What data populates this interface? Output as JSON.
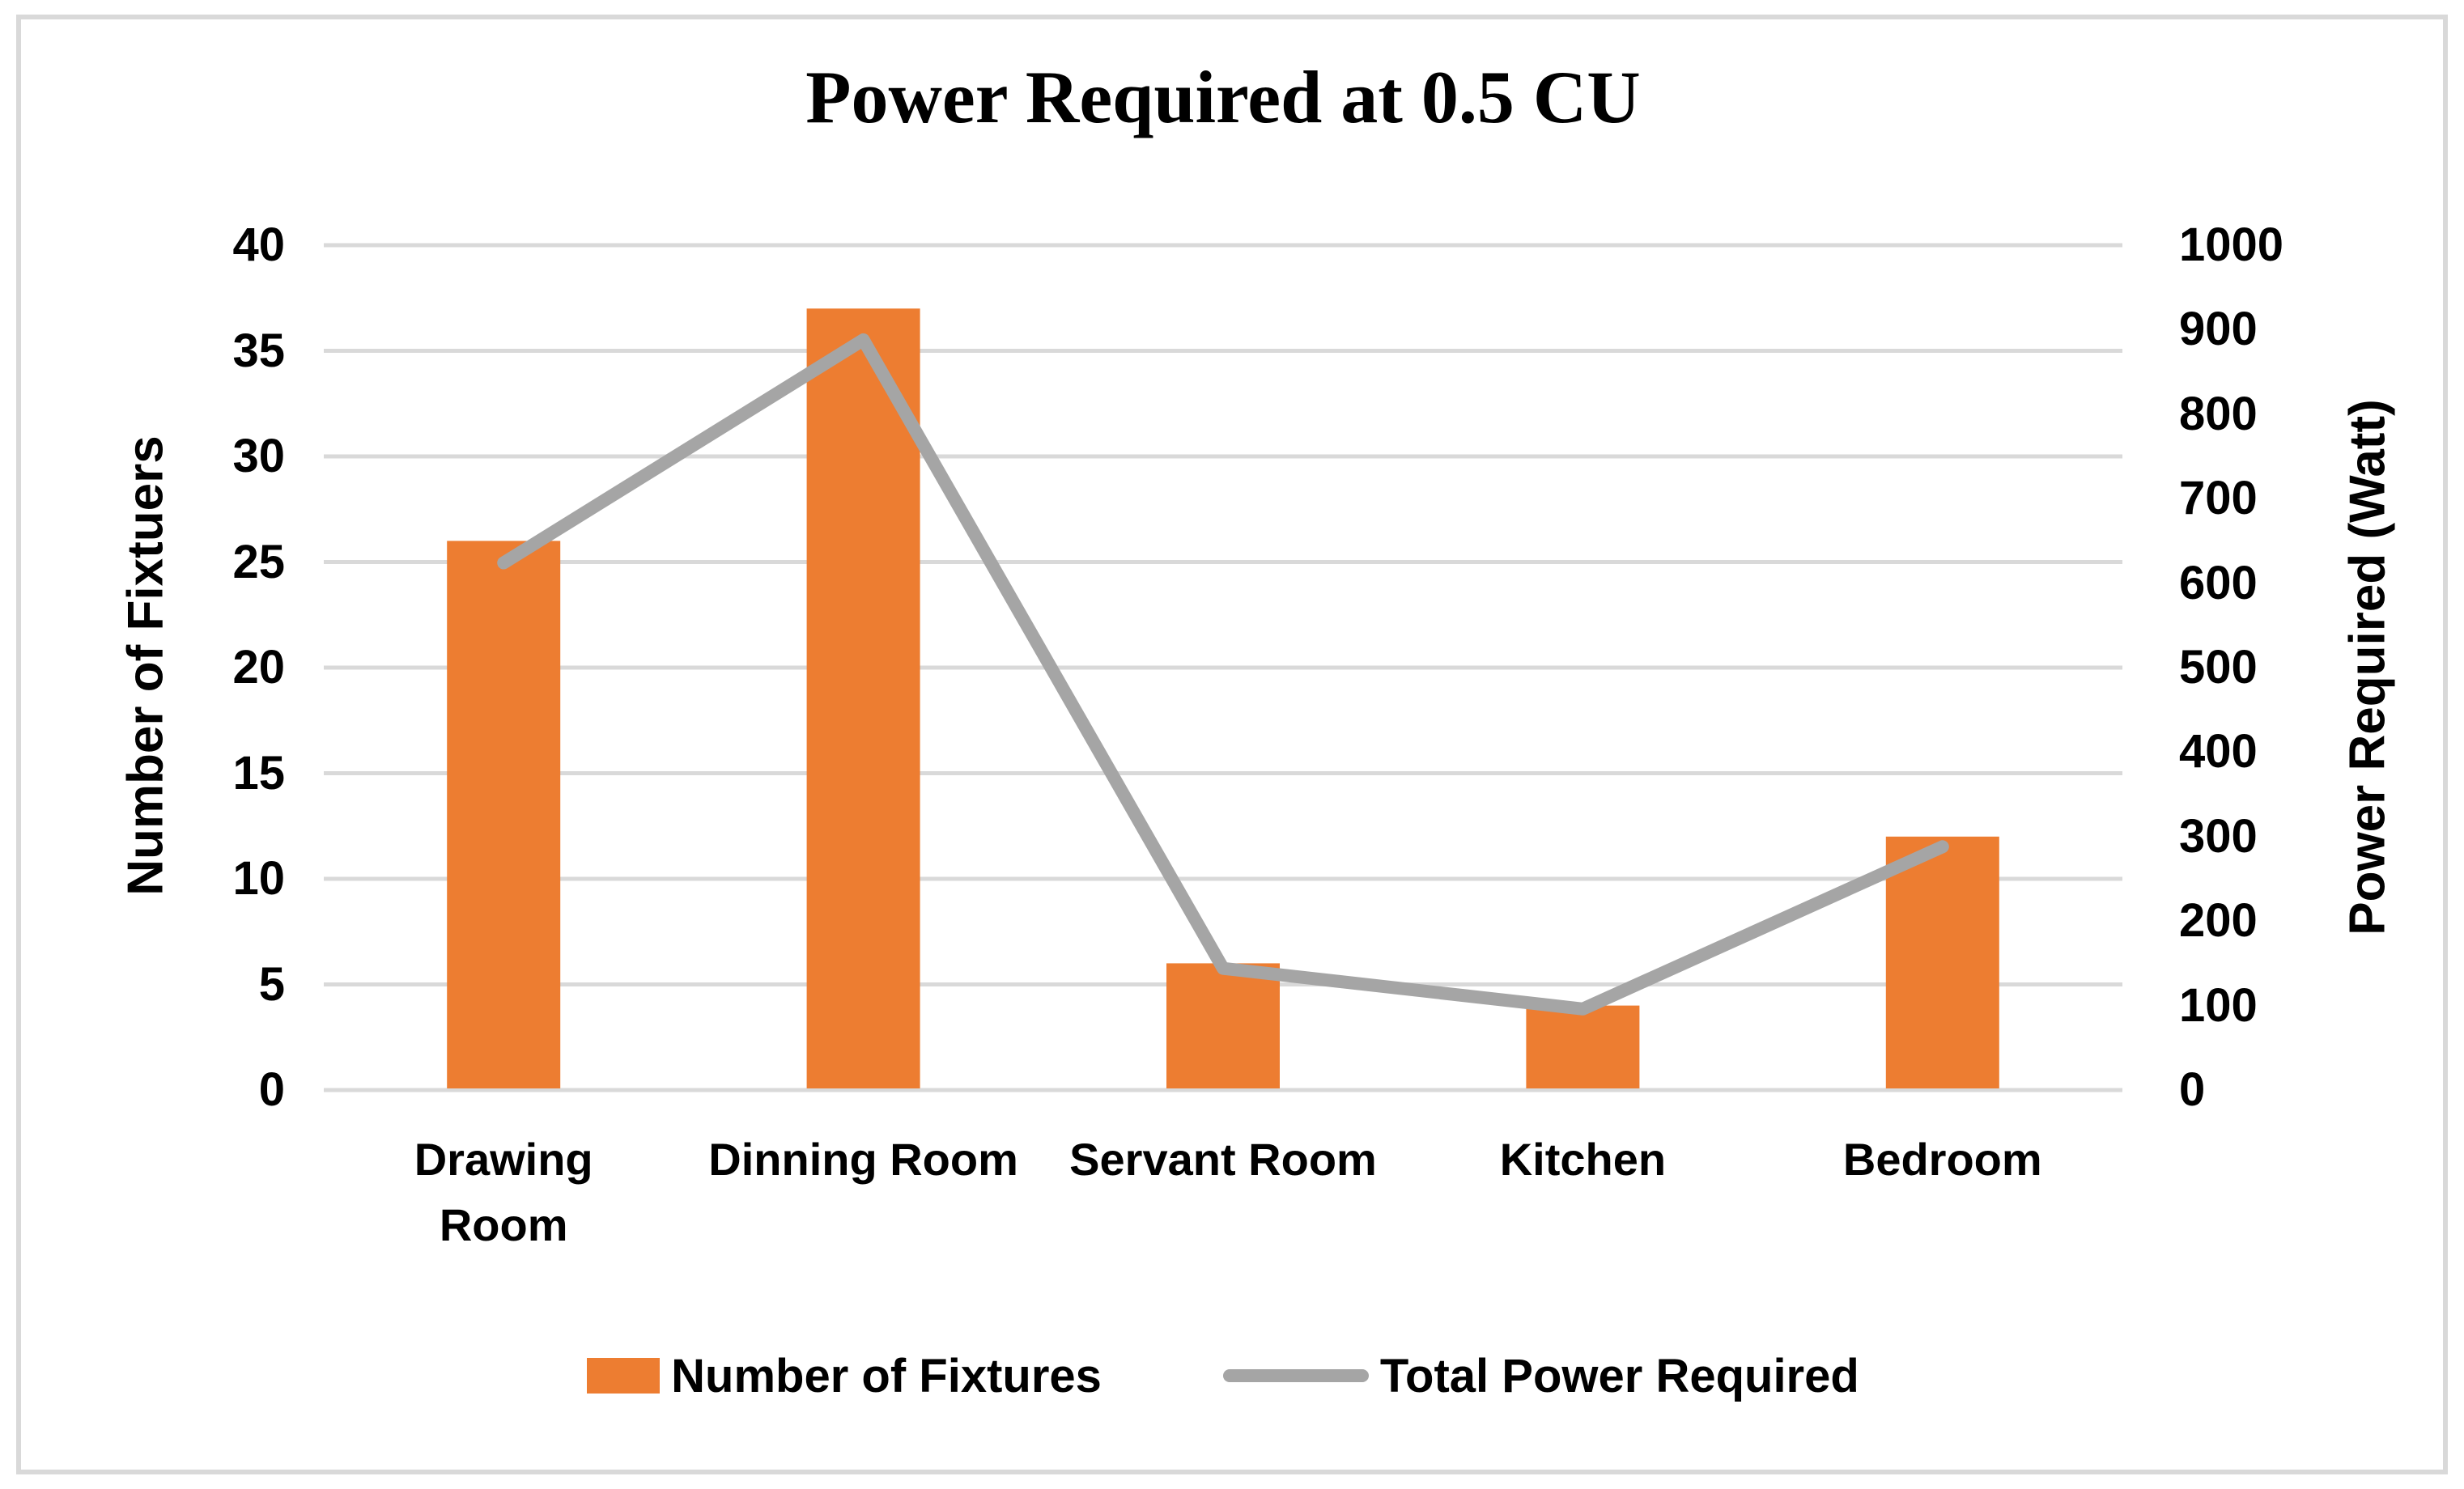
{
  "title": "Power Required at 0.5 CU",
  "chart_data": {
    "type": "bar",
    "subtype": "combo-bar-line-dual-axis",
    "categories": [
      "Drawing Room",
      "Dinning Room",
      "Servant Room",
      "Kitchen",
      "Bedroom"
    ],
    "category_label_lines": [
      [
        "Drawing",
        "Room"
      ],
      [
        "Dinning Room"
      ],
      [
        "Servant Room"
      ],
      [
        "Kitchen"
      ],
      [
        "Bedroom"
      ]
    ],
    "series": [
      {
        "name": "Number of Fixtures",
        "type": "bar",
        "axis": "left",
        "values": [
          26,
          37,
          6,
          4,
          12
        ],
        "color": "#ED7D31"
      },
      {
        "name": "Total Power Required",
        "type": "line",
        "axis": "right",
        "values": [
          624,
          888,
          144,
          96,
          288
        ],
        "color": "#A5A5A5"
      }
    ],
    "left_axis": {
      "title": "Number of Fixtuers",
      "min": 0,
      "max": 40,
      "step": 5,
      "tick_labels_top_to_bottom": [
        "40",
        "35",
        "30",
        "25",
        "20",
        "15",
        "10",
        "5",
        "0"
      ]
    },
    "right_axis": {
      "title": "Power Required (Watt)",
      "min": 0,
      "max": 1000,
      "step": 100,
      "tick_labels_top_to_bottom": [
        "1000",
        "900",
        "800",
        "700",
        "600",
        "500",
        "400",
        "300",
        "200",
        "100",
        "0"
      ]
    },
    "grid": true,
    "legend_position": "bottom"
  },
  "legend": {
    "items": [
      {
        "label": "Number of Fixtures",
        "swatch": "bar-square",
        "color": "#ED7D31"
      },
      {
        "label": "Total Power Required",
        "swatch": "line-sample",
        "color": "#A5A5A5"
      }
    ]
  },
  "colors": {
    "bar": "#ED7D31",
    "line": "#A5A5A5",
    "gridline": "#D9D9D9",
    "frame_border": "#D9D9D9",
    "text": "#000000",
    "background": "#FFFFFF"
  }
}
